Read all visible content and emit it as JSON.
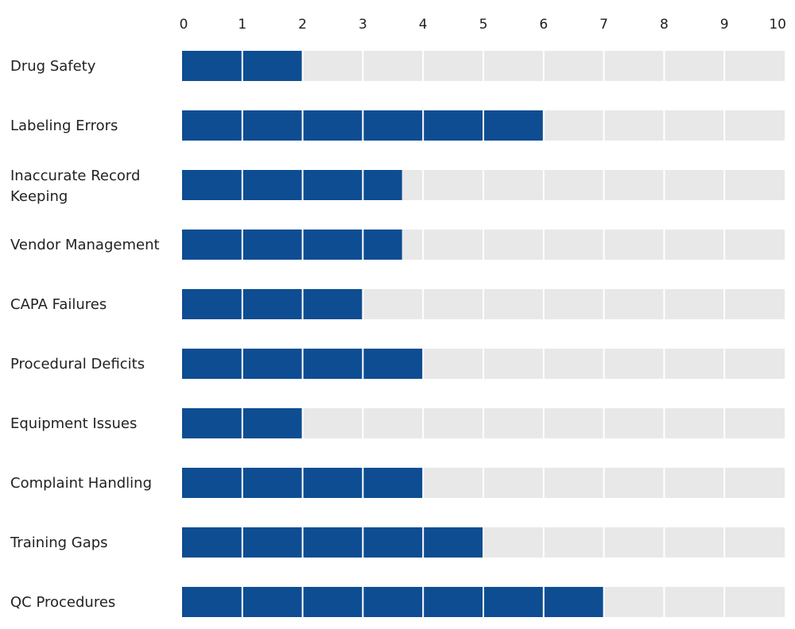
{
  "chart_data": {
    "type": "bar",
    "orientation": "horizontal",
    "title": "",
    "xlabel": "",
    "ylabel": "",
    "xlim": [
      0,
      10
    ],
    "xticks": [
      0,
      1,
      2,
      3,
      4,
      5,
      6,
      7,
      8,
      9,
      10
    ],
    "categories": [
      "Drug Safety",
      "Labeling Errors",
      "Inaccurate Record Keeping",
      "Vendor Management",
      "CAPA Failures",
      "Procedural Deficits",
      "Equipment Issues",
      "Complaint Handling",
      "Training Gaps",
      "QC Procedures"
    ],
    "values": [
      2,
      6,
      3.65,
      3.65,
      3,
      4,
      2,
      4,
      5,
      7
    ],
    "colors": {
      "bar": "#0e4d92",
      "track": "#e8e8e8",
      "divider": "#ffffff"
    },
    "legend": "none",
    "tick_position": "top"
  }
}
